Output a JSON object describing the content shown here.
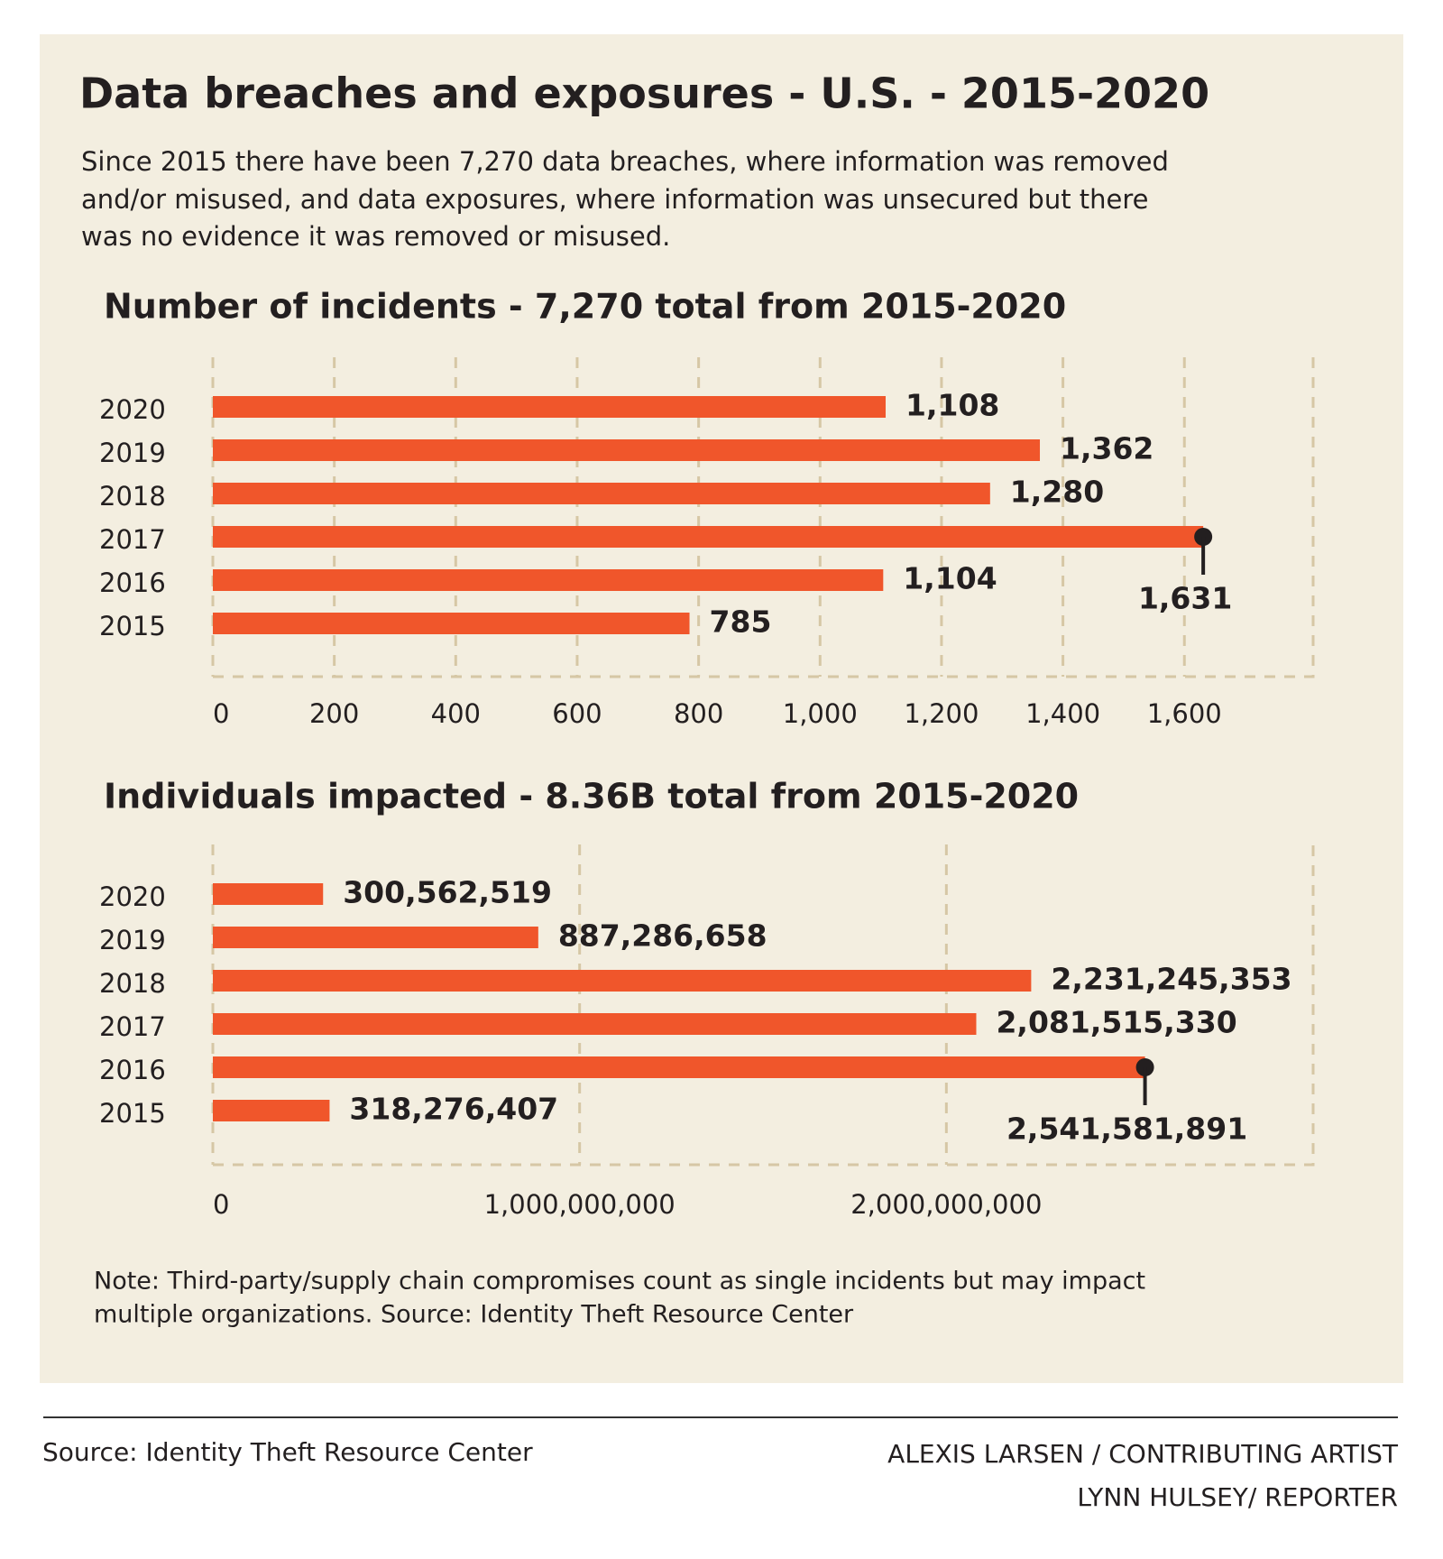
{
  "title": "Data breaches and exposures -  U.S. -  2015-2020",
  "subtitle": [
    "Since 2015 there have been 7,270 data breaches, where information was removed",
    "and/or misused,  and data exposures, where information was unsecured but there",
    "was no evidence it was removed or misused."
  ],
  "chart_data": [
    {
      "type": "bar",
      "orientation": "horizontal",
      "title": "Number of incidents - 7,270 total from 2015-2020",
      "categories": [
        "2020",
        "2019",
        "2018",
        "2017",
        "2016",
        "2015"
      ],
      "values": [
        1108,
        1362,
        1280,
        1631,
        1104,
        785
      ],
      "value_labels": [
        "1,108",
        "1,362",
        "1,280",
        "1,631",
        "1,104",
        "785"
      ],
      "color": "#f0562b",
      "xlim": [
        0,
        1812
      ],
      "xticks": [
        0,
        200,
        400,
        600,
        800,
        {
          "value": 1000,
          "label": "1,000"
        },
        {
          "value": 1200,
          "label": "1,200"
        },
        {
          "value": 1400,
          "label": "1,400"
        },
        {
          "value": 1600,
          "label": "1,600"
        }
      ],
      "grid": true
    },
    {
      "type": "bar",
      "orientation": "horizontal",
      "title": "Individuals impacted - 8.36B total from 2015-2020",
      "categories": [
        "2020",
        "2019",
        "2018",
        "2017",
        "2016",
        "2015"
      ],
      "values": [
        300562519,
        887286658,
        2231245353,
        2081515330,
        2541581891,
        318276407
      ],
      "value_labels": [
        "300,562,519",
        "887,286,658",
        "2,231,245,353",
        "2,081,515,330",
        "2,541,581,891",
        "318,276,407"
      ],
      "color": "#f0562b",
      "xlim": [
        0,
        3000000000
      ],
      "xticks": [
        0,
        {
          "value": 1000000000,
          "label": "1,000,000,000"
        },
        {
          "value": 2000000000,
          "label": "2,000,000,000"
        }
      ],
      "grid": true
    }
  ],
  "note": [
    "Note: Third-party/supply chain compromises count as single incidents but may impact",
    "multiple organizations. Source: Identity Theft Resource Center"
  ],
  "footer": {
    "source": "Source: Identity Theft Resource Center",
    "credits": [
      "ALEXIS LARSEN / CONTRIBUTING ARTIST",
      "LYNN HULSEY/ REPORTER"
    ]
  }
}
